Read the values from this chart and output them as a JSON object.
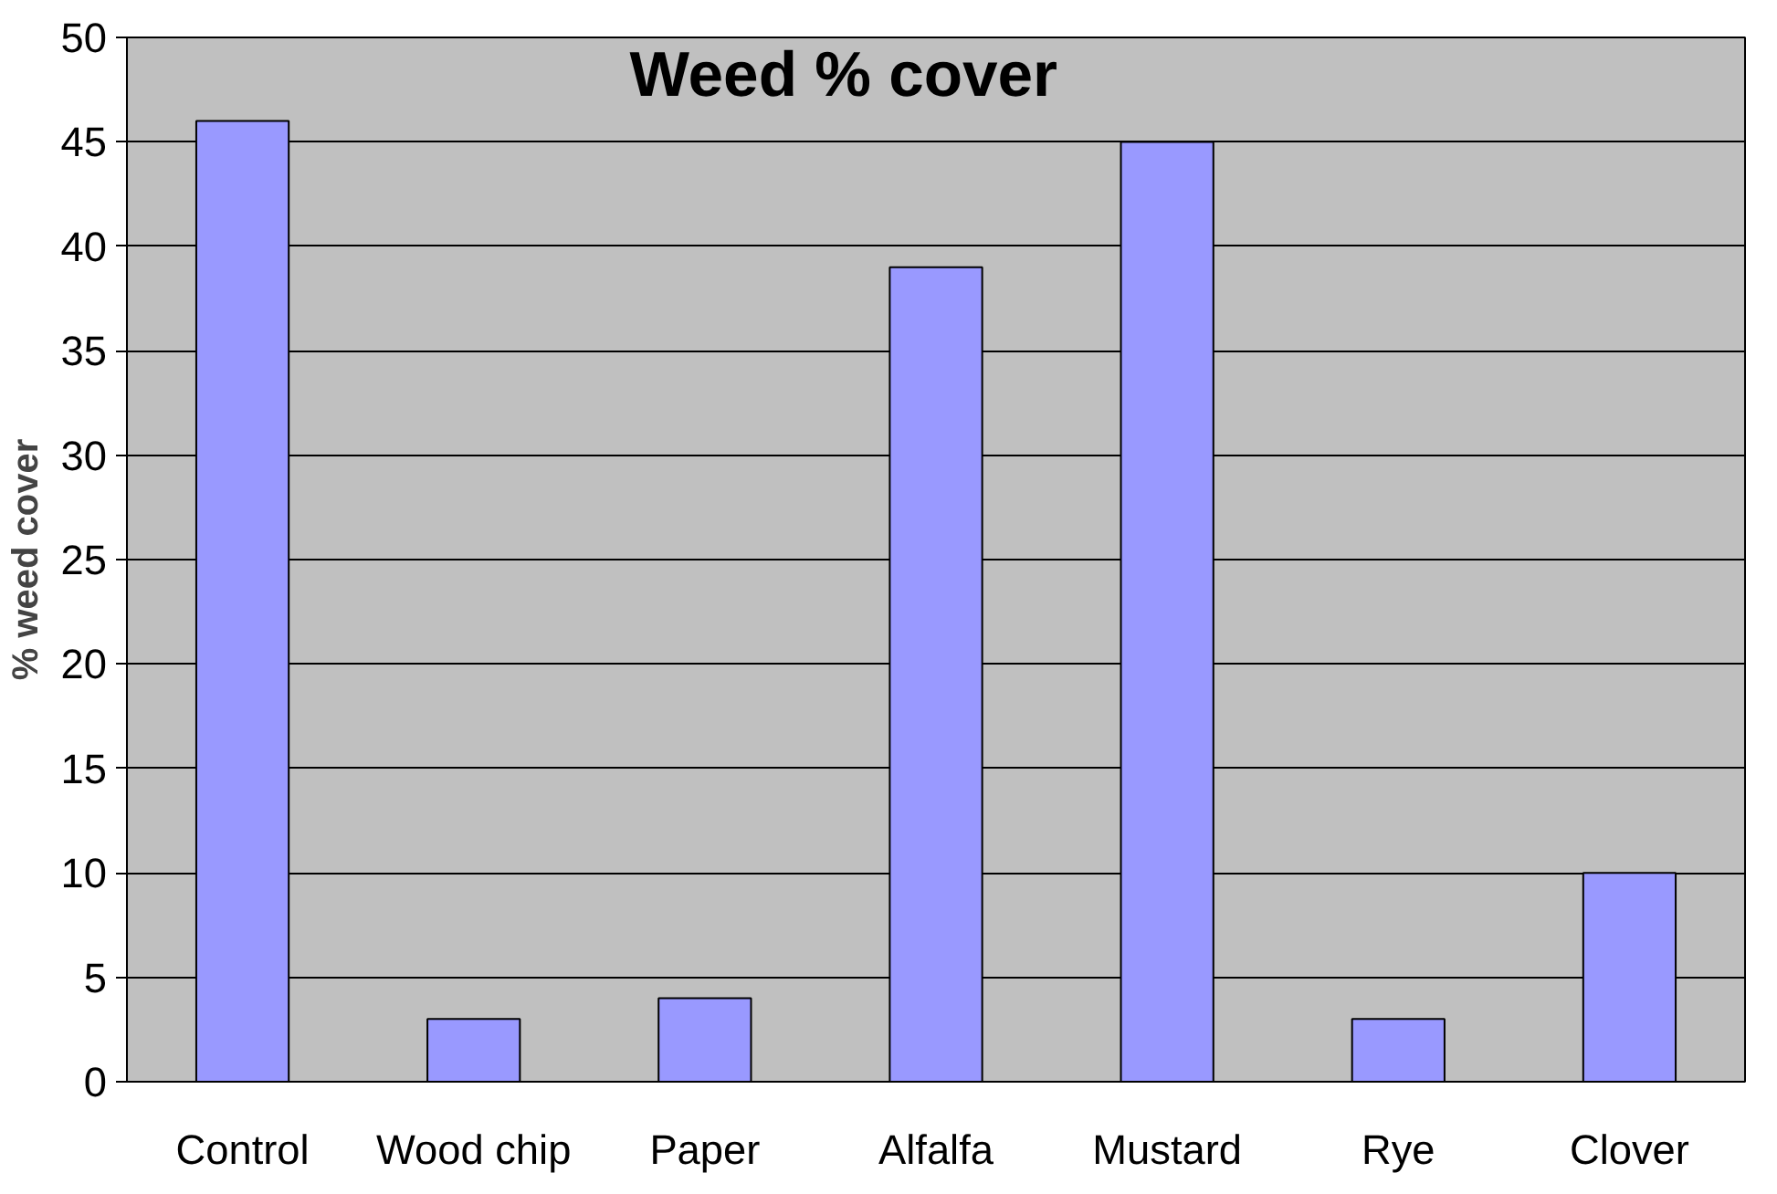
{
  "chart_data": {
    "type": "bar",
    "title": "Weed % cover",
    "ylabel": "% weed cover",
    "categories": [
      "Control",
      "Wood chip",
      "Paper",
      "Alfalfa",
      "Mustard",
      "Rye",
      "Clover"
    ],
    "values": [
      46,
      3,
      4,
      39,
      45,
      3,
      10
    ],
    "color": "#9999ff",
    "ylim": [
      0,
      50
    ],
    "yticks": [
      0,
      5,
      10,
      15,
      20,
      25,
      30,
      35,
      40,
      45,
      50
    ],
    "grid": "y"
  }
}
